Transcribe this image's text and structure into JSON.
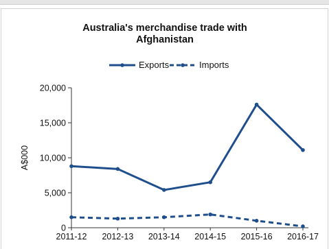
{
  "chart_data": {
    "type": "line",
    "title": "Australia's merchandise trade with Afghanistan",
    "title_lines": [
      "Australia's merchandise trade with",
      "Afghanistan"
    ],
    "xlabel": "",
    "ylabel": "A$000",
    "categories": [
      "2011-12",
      "2012-13",
      "2013-14",
      "2014-15",
      "2015-16",
      "2016-17"
    ],
    "ylim": [
      0,
      20000
    ],
    "yticks": [
      0,
      5000,
      10000,
      15000,
      20000
    ],
    "ytick_labels": [
      "0",
      "5,000",
      "10,000",
      "15,000",
      "20,000"
    ],
    "grid": false,
    "legend_position": "top-center",
    "series": [
      {
        "name": "Exports",
        "values": [
          8800,
          8400,
          5400,
          6500,
          17600,
          11100
        ],
        "color": "#1f4e8c",
        "style": "solid"
      },
      {
        "name": "Imports",
        "values": [
          1500,
          1300,
          1500,
          1900,
          1000,
          200
        ],
        "color": "#1f4e8c",
        "style": "dashed"
      }
    ]
  }
}
